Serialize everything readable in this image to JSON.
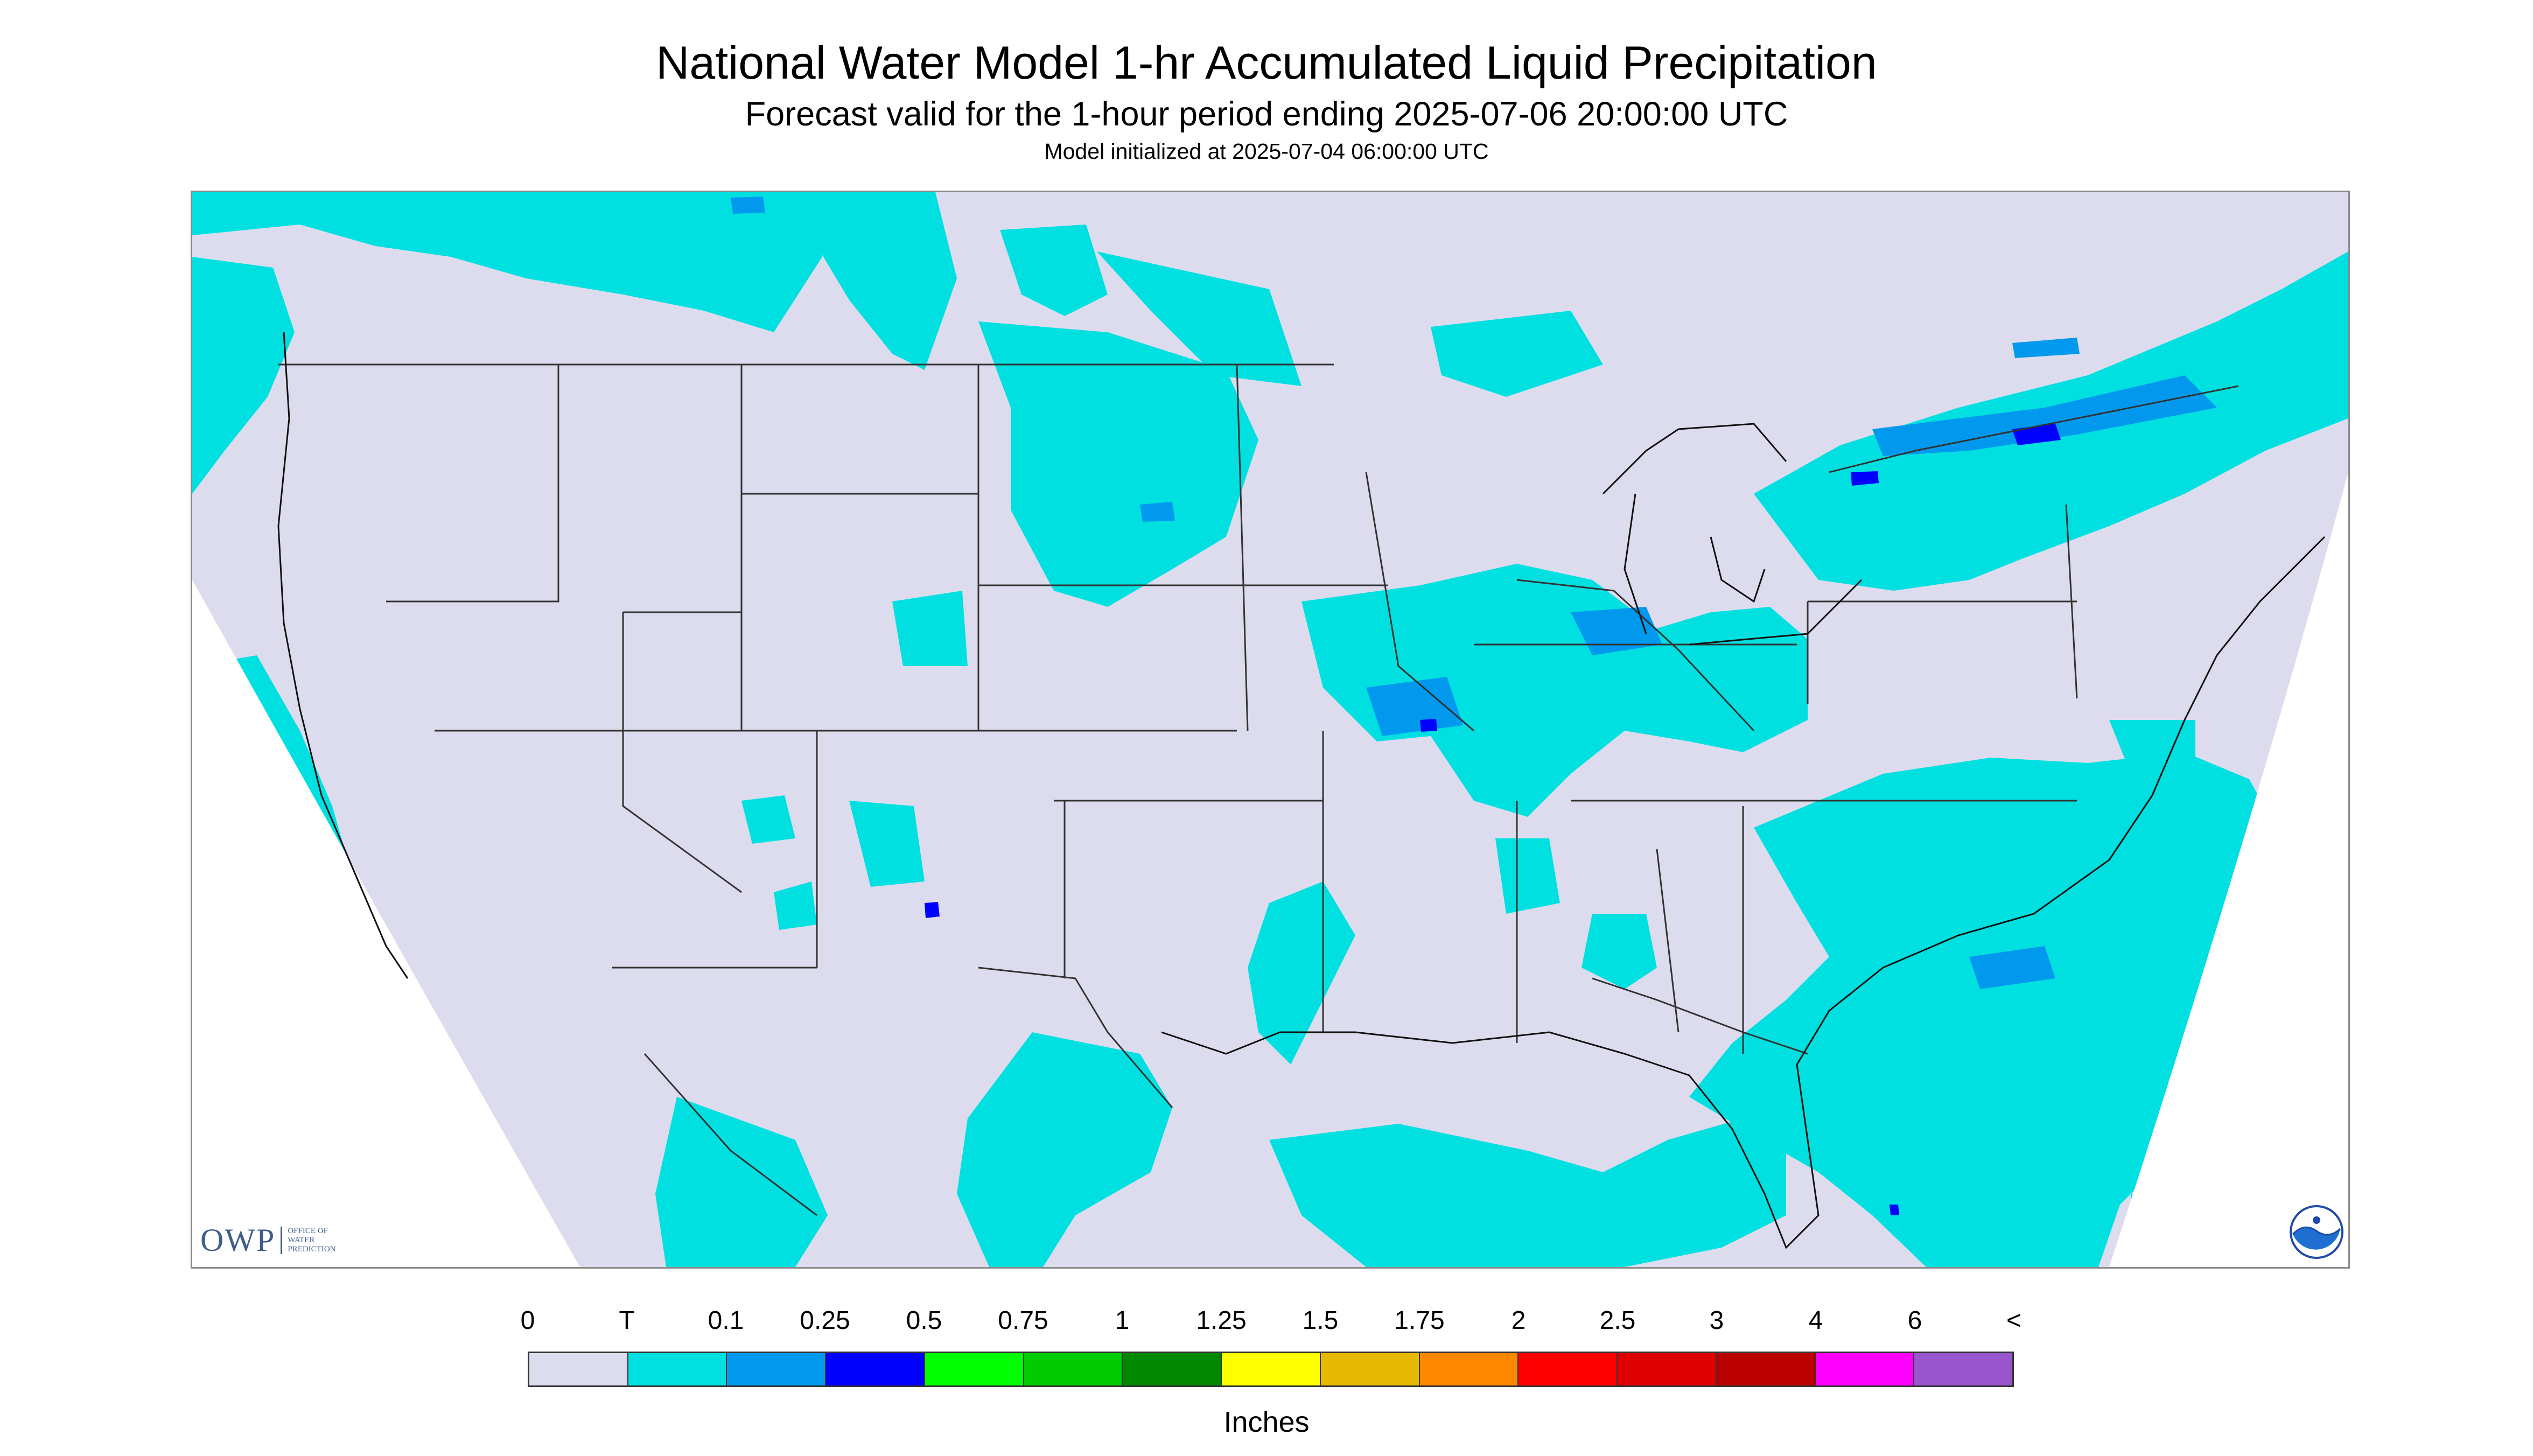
{
  "title": "National Water Model 1-hr Accumulated Liquid Precipitation",
  "subtitle": "Forecast valid for the 1-hour period ending 2025-07-06 20:00:00 UTC",
  "init_text": "Model initialized at 2025-07-04 06:00:00 UTC",
  "logo": {
    "owp_text": "OWP",
    "owp_sub": "OFFICE OF WATER PREDICTION",
    "noaa_icon": "noaa-logo"
  },
  "colorbar": {
    "units": "Inches",
    "labels": [
      "0",
      "T",
      "0.1",
      "0.25",
      "0.5",
      "0.75",
      "1",
      "1.25",
      "1.5",
      "1.75",
      "2",
      "2.5",
      "3",
      "4",
      "6",
      "<"
    ],
    "colors": [
      "#dcdcee",
      "#00e0e0",
      "#0099ee",
      "#0000ff",
      "#00ff00",
      "#00cc00",
      "#008800",
      "#ffff00",
      "#e6b800",
      "#ff8800",
      "#ff0000",
      "#dd0000",
      "#bb0000",
      "#ff00ff",
      "#9955cc"
    ]
  },
  "map": {
    "background_color": "#dcdcee",
    "trace_color": "#00e0e0",
    "light_color": "#0099ee",
    "heavy_color": "#0000ff"
  }
}
